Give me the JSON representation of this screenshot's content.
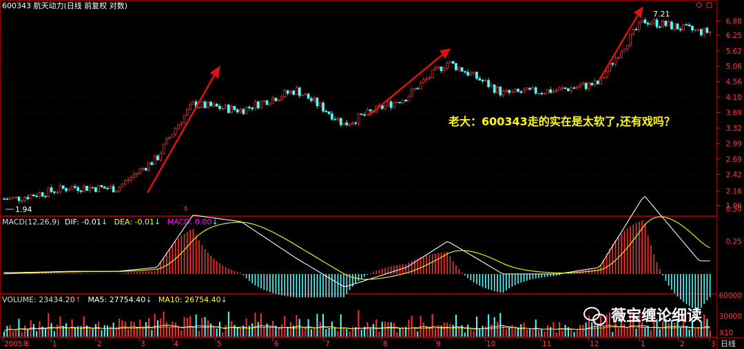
{
  "header": {
    "code": "600343",
    "name": "航天动力",
    "mode": "(日线 前复权 对数)"
  },
  "annotation": "老大：600343走的实在是太软了,还有戏吗？",
  "watermark": "薇宝缠论细读",
  "price_panel": {
    "y_ticks": [
      "6.88",
      "6.25",
      "5.62",
      "5.06",
      "4.56",
      "4.10",
      "3.69",
      "3.32",
      "2.99",
      "2.69",
      "2.42",
      "2.16",
      "1.96"
    ],
    "low_label": "1.94",
    "high_label": "7.21"
  },
  "macd_panel": {
    "label_main": "MACD(12,26,9)",
    "dif": "DIF: -0.01",
    "dea": "DEA: -0.01",
    "macd": "MACD: 0.00",
    "y_ticks": [
      "0.50",
      "0.25"
    ]
  },
  "volume_panel": {
    "label_main": "VOLUME: 23434.20",
    "ma5": "MA5: 27754.40",
    "ma10": "MA10: 26754.40",
    "y_ticks": [
      "60000",
      "30000"
    ],
    "unit": "X10"
  },
  "x_axis": {
    "labels": [
      "2005年",
      "1",
      "2",
      "3",
      "4",
      "5",
      "6",
      "7",
      "8",
      "9",
      "10",
      "11",
      "12",
      "1",
      "2",
      "3"
    ],
    "period": "日线"
  },
  "colors": {
    "up": "#ff3232",
    "down": "#54ffff",
    "dif": "#ffffff",
    "dea": "#ffff00",
    "macd_label": "#ff00ff",
    "arrow": "#e01010",
    "grid": "#880000"
  },
  "chart_data": {
    "type": "candlestick",
    "title": "600343 航天动力 (日线 前复权 对数)",
    "series": [
      {
        "name": "price",
        "x": [
          "2005-01",
          "2005-02",
          "2005-03",
          "2005-04",
          "2005-05",
          "2005-06",
          "2005-07",
          "2005-08",
          "2005-09",
          "2005-10",
          "2005-11",
          "2005-12",
          "2006-01",
          "2006-02",
          "2006-03"
        ],
        "values": [
          2.05,
          2.22,
          2.2,
          2.7,
          3.9,
          3.75,
          4.3,
          3.4,
          4.1,
          5.2,
          4.2,
          4.3,
          4.5,
          6.9,
          6.4
        ]
      },
      {
        "name": "DIF",
        "x": [
          "2005-01",
          "2005-02",
          "2005-03",
          "2005-04",
          "2005-05",
          "2005-06",
          "2005-07",
          "2005-08",
          "2005-09",
          "2005-10",
          "2005-11",
          "2005-12",
          "2006-01",
          "2006-02",
          "2006-03"
        ],
        "values": [
          0.01,
          0.02,
          0.02,
          0.05,
          0.45,
          0.4,
          0.12,
          -0.1,
          0.05,
          0.25,
          0.0,
          0.0,
          0.05,
          0.6,
          0.1
        ]
      }
    ],
    "ylim": [
      1.9,
      7.3
    ],
    "log_scale": true,
    "annotations": [
      "1.94",
      "7.21"
    ]
  }
}
